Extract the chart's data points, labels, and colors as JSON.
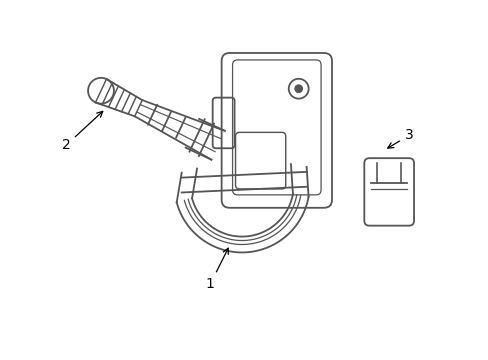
{
  "bg_color": "#ffffff",
  "line_color": "#555555",
  "label_color": "#000000",
  "lw": 1.3,
  "fig_w": 4.89,
  "fig_h": 3.6,
  "dpi": 100
}
